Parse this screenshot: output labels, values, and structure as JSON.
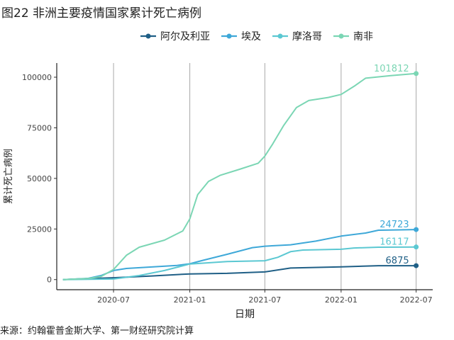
{
  "figure": {
    "title": "图22 非洲主要疫情国家累计死亡病例",
    "source": "来源：约翰霍普金斯大学、第一财经研究院计算"
  },
  "chart_data": {
    "type": "line",
    "xlabel": "日期",
    "ylabel": "累计死亡病例",
    "x_ticks": [
      "2020-07",
      "2021-01",
      "2021-07",
      "2022-01",
      "2022-07"
    ],
    "y_ticks": [
      0,
      25000,
      50000,
      75000,
      100000
    ],
    "ylim": [
      -5000,
      107000
    ],
    "xlim": [
      "2020-02-15",
      "2022-08-10"
    ],
    "grid": "vertical major",
    "legend": "top",
    "series": [
      {
        "name": "阿尔及利亚",
        "color": "#1f5f86",
        "end_label": "6875",
        "points": [
          [
            "2020-03-01",
            0
          ],
          [
            "2020-05-01",
            500
          ],
          [
            "2020-07-01",
            900
          ],
          [
            "2020-10-01",
            1800
          ],
          [
            "2021-01-01",
            2800
          ],
          [
            "2021-04-01",
            3100
          ],
          [
            "2021-07-01",
            3800
          ],
          [
            "2021-09-01",
            5700
          ],
          [
            "2022-01-01",
            6300
          ],
          [
            "2022-04-01",
            6870
          ],
          [
            "2022-07-01",
            6875
          ]
        ]
      },
      {
        "name": "埃及",
        "color": "#3ea8d8",
        "end_label": "24723",
        "points": [
          [
            "2020-03-01",
            0
          ],
          [
            "2020-05-01",
            600
          ],
          [
            "2020-06-01",
            2000
          ],
          [
            "2020-07-01",
            4500
          ],
          [
            "2020-08-01",
            5500
          ],
          [
            "2020-12-01",
            7000
          ],
          [
            "2021-01-01",
            7800
          ],
          [
            "2021-02-01",
            9500
          ],
          [
            "2021-04-01",
            12500
          ],
          [
            "2021-06-01",
            15800
          ],
          [
            "2021-07-01",
            16500
          ],
          [
            "2021-09-01",
            17200
          ],
          [
            "2021-11-01",
            19000
          ],
          [
            "2022-01-01",
            21500
          ],
          [
            "2022-03-01",
            23000
          ],
          [
            "2022-04-01",
            24400
          ],
          [
            "2022-07-01",
            24723
          ]
        ]
      },
      {
        "name": "摩洛哥",
        "color": "#5bc8d2",
        "end_label": "16117",
        "points": [
          [
            "2020-03-01",
            0
          ],
          [
            "2020-07-01",
            300
          ],
          [
            "2020-09-01",
            2000
          ],
          [
            "2020-11-01",
            4500
          ],
          [
            "2021-01-01",
            7700
          ],
          [
            "2021-04-01",
            8900
          ],
          [
            "2021-07-01",
            9300
          ],
          [
            "2021-08-01",
            11000
          ],
          [
            "2021-09-01",
            13800
          ],
          [
            "2021-10-01",
            14600
          ],
          [
            "2022-01-01",
            15000
          ],
          [
            "2022-02-01",
            15600
          ],
          [
            "2022-04-01",
            16000
          ],
          [
            "2022-07-01",
            16117
          ]
        ]
      },
      {
        "name": "南非",
        "color": "#7bd6b4",
        "end_label": "101812",
        "points": [
          [
            "2020-03-01",
            0
          ],
          [
            "2020-05-01",
            500
          ],
          [
            "2020-06-01",
            1500
          ],
          [
            "2020-07-01",
            5000
          ],
          [
            "2020-08-01",
            12000
          ],
          [
            "2020-09-01",
            16000
          ],
          [
            "2020-11-01",
            19500
          ],
          [
            "2020-12-15",
            24000
          ],
          [
            "2021-01-01",
            30000
          ],
          [
            "2021-01-20",
            42000
          ],
          [
            "2021-02-15",
            48500
          ],
          [
            "2021-03-15",
            51500
          ],
          [
            "2021-05-01",
            54500
          ],
          [
            "2021-06-15",
            57500
          ],
          [
            "2021-07-01",
            61000
          ],
          [
            "2021-07-20",
            67000
          ],
          [
            "2021-08-15",
            76000
          ],
          [
            "2021-09-15",
            85000
          ],
          [
            "2021-10-15",
            88500
          ],
          [
            "2021-12-01",
            90000
          ],
          [
            "2022-01-01",
            91500
          ],
          [
            "2022-02-01",
            95500
          ],
          [
            "2022-03-01",
            99500
          ],
          [
            "2022-05-01",
            100800
          ],
          [
            "2022-07-01",
            101812
          ]
        ]
      }
    ]
  }
}
